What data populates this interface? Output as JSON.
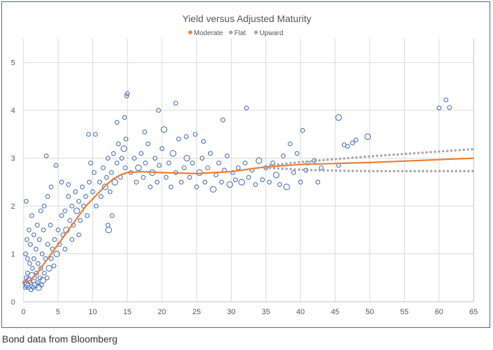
{
  "caption": "Bond data from Bloomberg",
  "chart_data": {
    "type": "scatter",
    "title": "Yield versus Adjusted Maturity",
    "xlabel": "",
    "ylabel": "",
    "xlim": [
      0,
      65
    ],
    "ylim": [
      0,
      5.5
    ],
    "xticks": [
      0,
      5,
      10,
      15,
      20,
      25,
      30,
      35,
      40,
      45,
      50,
      55,
      60,
      65
    ],
    "yticks": [
      0,
      1,
      2,
      3,
      4,
      5
    ],
    "grid": true,
    "legend": {
      "placement": "top",
      "entries": [
        "Moderate",
        "Flat",
        "Upward"
      ]
    },
    "colors": {
      "points": "#4a6fc0",
      "Moderate": "#ed7d31",
      "Flat": "#a6a6a6",
      "Upward": "#a6a6a6",
      "grid": "#d9d9d9",
      "frame": "#4a62a8"
    },
    "bond_points": [
      [
        0.2,
        0.4,
        1
      ],
      [
        0.3,
        0.3,
        1
      ],
      [
        0.4,
        0.5,
        1
      ],
      [
        0.5,
        0.35,
        2
      ],
      [
        0.6,
        0.6,
        1
      ],
      [
        0.7,
        0.3,
        1
      ],
      [
        0.8,
        0.45,
        2
      ],
      [
        0.9,
        0.8,
        1
      ],
      [
        1.0,
        0.4,
        1
      ],
      [
        1.1,
        0.25,
        1
      ],
      [
        1.2,
        0.55,
        2
      ],
      [
        1.3,
        0.7,
        1
      ],
      [
        1.4,
        0.3,
        1
      ],
      [
        1.5,
        0.9,
        1
      ],
      [
        1.6,
        0.5,
        1
      ],
      [
        1.7,
        0.35,
        2
      ],
      [
        1.8,
        1.1,
        1
      ],
      [
        1.9,
        0.6,
        1
      ],
      [
        2.0,
        0.4,
        1
      ],
      [
        2.1,
        0.8,
        1
      ],
      [
        2.2,
        0.3,
        2
      ],
      [
        2.3,
        1.3,
        1
      ],
      [
        2.4,
        0.5,
        1
      ],
      [
        2.5,
        0.7,
        1
      ],
      [
        2.6,
        0.35,
        1
      ],
      [
        2.7,
        1.0,
        1
      ],
      [
        2.8,
        0.45,
        2
      ],
      [
        2.9,
        1.5,
        1
      ],
      [
        3.0,
        0.6,
        1
      ],
      [
        3.2,
        0.9,
        1
      ],
      [
        3.4,
        0.5,
        1
      ],
      [
        3.5,
        1.2,
        1
      ],
      [
        3.7,
        0.7,
        2
      ],
      [
        3.9,
        1.6,
        1
      ],
      [
        4.0,
        0.9,
        1
      ],
      [
        4.2,
        1.1,
        1
      ],
      [
        4.4,
        0.75,
        1
      ],
      [
        0.3,
        1.0,
        1
      ],
      [
        0.5,
        1.3,
        1
      ],
      [
        0.8,
        1.5,
        1
      ],
      [
        1.0,
        1.2,
        1
      ],
      [
        0.4,
        2.1,
        1
      ],
      [
        1.2,
        1.8,
        1
      ],
      [
        0.6,
        0.9,
        1
      ],
      [
        1.5,
        1.4,
        1
      ],
      [
        2.0,
        1.6,
        1
      ],
      [
        2.5,
        1.9,
        1
      ],
      [
        3.0,
        2.0,
        1
      ],
      [
        3.5,
        2.2,
        1
      ],
      [
        3.3,
        3.05,
        1
      ],
      [
        4.0,
        2.4,
        1
      ],
      [
        4.7,
        2.85,
        1
      ],
      [
        4.5,
        1.3,
        1
      ],
      [
        4.8,
        1.0,
        2
      ],
      [
        5.0,
        1.5,
        1
      ],
      [
        5.2,
        1.2,
        1
      ],
      [
        5.5,
        1.8,
        1
      ],
      [
        5.7,
        1.4,
        1
      ],
      [
        6.0,
        1.9,
        1
      ],
      [
        6.2,
        1.5,
        2
      ],
      [
        6.5,
        2.2,
        1
      ],
      [
        6.7,
        1.7,
        1
      ],
      [
        7.0,
        2.0,
        1
      ],
      [
        7.2,
        1.6,
        1
      ],
      [
        7.5,
        2.3,
        1
      ],
      [
        7.7,
        1.9,
        2
      ],
      [
        8.0,
        2.1,
        1
      ],
      [
        8.2,
        1.7,
        1
      ],
      [
        8.5,
        2.4,
        1
      ],
      [
        8.7,
        2.0,
        1
      ],
      [
        9.0,
        2.2,
        1
      ],
      [
        9.2,
        1.8,
        1
      ],
      [
        9.5,
        2.5,
        1
      ],
      [
        9.7,
        2.9,
        1
      ],
      [
        9.4,
        3.5,
        1
      ],
      [
        10.0,
        2.3,
        1
      ],
      [
        10.2,
        2.7,
        1
      ],
      [
        10.5,
        2.0,
        1
      ],
      [
        10.4,
        3.5,
        1
      ],
      [
        6.0,
        1.1,
        1
      ],
      [
        7.0,
        1.3,
        1
      ],
      [
        8.0,
        1.4,
        1
      ],
      [
        5.5,
        2.5,
        1
      ],
      [
        6.5,
        2.45,
        1
      ],
      [
        11.0,
        2.5,
        1
      ],
      [
        11.2,
        2.2,
        1
      ],
      [
        11.5,
        2.8,
        1
      ],
      [
        11.8,
        2.4,
        2
      ],
      [
        12.0,
        2.6,
        1
      ],
      [
        12.2,
        3.0,
        1
      ],
      [
        12.5,
        2.3,
        1
      ],
      [
        12.7,
        2.7,
        1
      ],
      [
        13.0,
        3.1,
        1
      ],
      [
        13.2,
        2.5,
        2
      ],
      [
        13.5,
        2.9,
        1
      ],
      [
        13.7,
        3.3,
        1
      ],
      [
        14.0,
        2.6,
        1
      ],
      [
        14.2,
        3.0,
        1
      ],
      [
        14.5,
        3.2,
        2
      ],
      [
        14.7,
        2.8,
        1
      ],
      [
        14.8,
        3.4,
        1
      ],
      [
        14.9,
        4.3,
        1
      ],
      [
        15.0,
        4.35,
        1
      ],
      [
        14.6,
        3.85,
        1
      ],
      [
        13.5,
        3.75,
        1
      ],
      [
        12.2,
        1.6,
        1
      ],
      [
        12.8,
        1.8,
        1
      ],
      [
        12.3,
        1.5,
        2
      ],
      [
        15.5,
        2.7,
        1
      ],
      [
        16.0,
        3.0,
        1
      ],
      [
        16.3,
        2.5,
        1
      ],
      [
        16.6,
        2.8,
        2
      ],
      [
        17.0,
        3.1,
        1
      ],
      [
        17.3,
        2.6,
        1
      ],
      [
        17.6,
        2.9,
        1
      ],
      [
        18.0,
        3.3,
        1
      ],
      [
        18.3,
        2.4,
        1
      ],
      [
        18.6,
        2.7,
        2
      ],
      [
        19.0,
        3.0,
        1
      ],
      [
        19.3,
        2.5,
        1
      ],
      [
        19.6,
        2.85,
        1
      ],
      [
        20.0,
        3.2,
        1
      ],
      [
        20.3,
        3.6,
        2
      ],
      [
        20.6,
        2.6,
        1
      ],
      [
        21.0,
        2.9,
        1
      ],
      [
        21.3,
        2.4,
        1
      ],
      [
        21.6,
        3.1,
        2
      ],
      [
        22.0,
        2.7,
        1
      ],
      [
        22.0,
        4.15,
        1
      ],
      [
        22.4,
        3.4,
        1
      ],
      [
        22.8,
        2.5,
        1
      ],
      [
        23.2,
        2.8,
        1
      ],
      [
        23.6,
        3.0,
        2
      ],
      [
        24.0,
        2.6,
        1
      ],
      [
        24.4,
        2.9,
        1
      ],
      [
        24.8,
        3.5,
        1
      ],
      [
        25.0,
        2.4,
        1
      ],
      [
        25.4,
        2.7,
        2
      ],
      [
        25.8,
        3.0,
        1
      ],
      [
        26.2,
        2.5,
        1
      ],
      [
        26.6,
        2.8,
        1
      ],
      [
        27.0,
        3.1,
        1
      ],
      [
        27.4,
        2.35,
        2
      ],
      [
        27.8,
        2.65,
        1
      ],
      [
        28.2,
        2.9,
        1
      ],
      [
        28.6,
        2.5,
        1
      ],
      [
        28.8,
        3.8,
        1
      ],
      [
        29.0,
        2.75,
        1
      ],
      [
        29.4,
        3.05,
        1
      ],
      [
        29.8,
        2.45,
        2
      ],
      [
        30.2,
        2.7,
        1
      ],
      [
        30.6,
        2.55,
        1
      ],
      [
        19.5,
        4.0,
        1
      ],
      [
        17.5,
        3.55,
        1
      ],
      [
        23.5,
        3.45,
        1
      ],
      [
        26.0,
        3.35,
        1
      ],
      [
        31.0,
        2.8,
        1
      ],
      [
        31.5,
        2.5,
        2
      ],
      [
        32.0,
        2.9,
        1
      ],
      [
        32.2,
        4.05,
        1
      ],
      [
        32.5,
        2.6,
        1
      ],
      [
        33.0,
        2.75,
        1
      ],
      [
        33.5,
        2.45,
        1
      ],
      [
        34.0,
        2.95,
        2
      ],
      [
        34.5,
        2.55,
        1
      ],
      [
        35.0,
        2.8,
        1
      ],
      [
        35.5,
        2.5,
        1
      ],
      [
        36.0,
        2.9,
        1
      ],
      [
        36.5,
        2.65,
        2
      ],
      [
        37.0,
        2.45,
        1
      ],
      [
        37.5,
        3.05,
        1
      ],
      [
        38.0,
        2.4,
        2
      ],
      [
        38.5,
        3.3,
        1
      ],
      [
        39.0,
        2.7,
        1
      ],
      [
        39.5,
        3.1,
        1
      ],
      [
        40.0,
        2.5,
        1
      ],
      [
        40.3,
        3.58,
        1
      ],
      [
        40.8,
        2.75,
        1
      ],
      [
        41.0,
        2.9,
        1
      ],
      [
        42.0,
        2.95,
        1
      ],
      [
        43.0,
        2.8,
        1
      ],
      [
        42.5,
        2.5,
        1
      ],
      [
        45.5,
        3.85,
        2
      ],
      [
        46.3,
        3.28,
        1
      ],
      [
        46.8,
        3.25,
        1
      ],
      [
        47.5,
        3.32,
        1
      ],
      [
        48.0,
        3.38,
        1
      ],
      [
        49.7,
        3.45,
        2
      ],
      [
        45.5,
        2.85,
        1
      ],
      [
        60.0,
        4.05,
        1
      ],
      [
        61.0,
        4.22,
        1
      ],
      [
        61.5,
        4.06,
        1
      ]
    ],
    "series": [
      {
        "name": "Moderate",
        "style": "solid",
        "x": [
          0,
          1,
          2,
          3,
          4,
          5,
          6,
          7,
          8,
          9,
          10,
          11,
          12,
          13,
          14,
          15,
          17,
          20,
          25,
          30,
          33,
          35,
          38,
          40,
          45,
          50,
          55,
          60,
          65
        ],
        "y": [
          0.4,
          0.45,
          0.6,
          0.8,
          1.0,
          1.2,
          1.4,
          1.6,
          1.8,
          2.0,
          2.15,
          2.3,
          2.45,
          2.57,
          2.65,
          2.7,
          2.72,
          2.7,
          2.68,
          2.72,
          2.78,
          2.82,
          2.85,
          2.87,
          2.89,
          2.91,
          2.94,
          2.97,
          3.0
        ]
      },
      {
        "name": "Flat",
        "style": "dotted",
        "x": [
          35,
          40,
          45,
          50,
          55,
          60,
          65
        ],
        "y": [
          2.8,
          2.76,
          2.74,
          2.73,
          2.73,
          2.73,
          2.73
        ]
      },
      {
        "name": "Upward",
        "style": "dotted",
        "x": [
          35,
          40,
          45,
          50,
          55,
          60,
          65
        ],
        "y": [
          2.84,
          2.92,
          2.98,
          3.04,
          3.09,
          3.14,
          3.19
        ]
      }
    ]
  }
}
